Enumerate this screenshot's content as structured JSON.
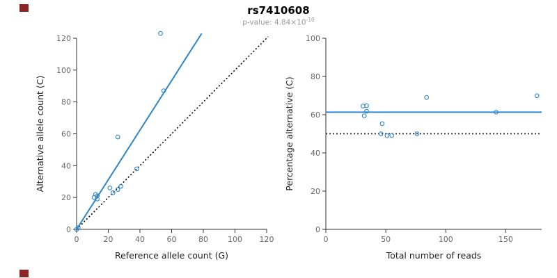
{
  "title": "rs7410608",
  "subtitle": {
    "text": "p-value: 4.84×10",
    "exponent": "-10"
  },
  "colors": {
    "point": "#2e86c9",
    "fit_line": "#2e86c9",
    "identity_line": "#000000",
    "axis": "#333333",
    "tick_label": "#666666",
    "axis_title": "#222222",
    "title": "#000000",
    "subtitle": "#999999",
    "corner_marker": "#8b2525"
  },
  "chart_data": [
    {
      "type": "scatter",
      "xlabel": "Reference allele count (G)",
      "ylabel": "Alternative allele count (C)",
      "xlim": [
        0,
        120
      ],
      "ylim": [
        0,
        120
      ],
      "xticks": [
        0,
        20,
        40,
        60,
        80,
        100,
        120
      ],
      "yticks": [
        0,
        20,
        40,
        60,
        80,
        100,
        120
      ],
      "grid": false,
      "points": [
        [
          0,
          0
        ],
        [
          1,
          1
        ],
        [
          11,
          20
        ],
        [
          12,
          22
        ],
        [
          13,
          21
        ],
        [
          13,
          19
        ],
        [
          21,
          26
        ],
        [
          23,
          23
        ],
        [
          26,
          58
        ],
        [
          26,
          25
        ],
        [
          28,
          27
        ],
        [
          38,
          38
        ],
        [
          55,
          87
        ],
        [
          53,
          123
        ]
      ],
      "lines": [
        {
          "name": "identity-line",
          "style": "dotted",
          "color": "#000000",
          "width": 1.6,
          "points": [
            [
              0,
              0
            ],
            [
              121,
              121
            ]
          ]
        },
        {
          "name": "fit-line",
          "style": "solid",
          "color": "#2e86c9",
          "width": 2,
          "points": [
            [
              0,
              0
            ],
            [
              79,
              123
            ]
          ]
        }
      ]
    },
    {
      "type": "scatter",
      "xlabel": "Total number of reads",
      "ylabel": "Percentage alternative (C)",
      "xlim": [
        0,
        180
      ],
      "ylim": [
        0,
        100
      ],
      "xticks": [
        0,
        50,
        100,
        150
      ],
      "yticks": [
        0,
        20,
        40,
        60,
        80,
        100
      ],
      "grid": false,
      "points": [
        [
          31,
          64.5
        ],
        [
          34,
          64.7
        ],
        [
          34,
          61.8
        ],
        [
          32,
          59.4
        ],
        [
          47,
          55.3
        ],
        [
          46,
          50.0
        ],
        [
          51,
          49.0
        ],
        [
          55,
          49.1
        ],
        [
          76,
          50.0
        ],
        [
          84,
          69.0
        ],
        [
          142,
          61.3
        ],
        [
          176,
          69.9
        ]
      ],
      "lines": [
        {
          "name": "null-line",
          "style": "dotted",
          "color": "#000000",
          "width": 1.6,
          "points": [
            [
              0,
              50
            ],
            [
              180,
              50
            ]
          ]
        },
        {
          "name": "mean-line",
          "style": "solid",
          "color": "#2e86c9",
          "width": 2,
          "points": [
            [
              0,
              61.3
            ],
            [
              180,
              61.3
            ]
          ]
        }
      ]
    }
  ]
}
